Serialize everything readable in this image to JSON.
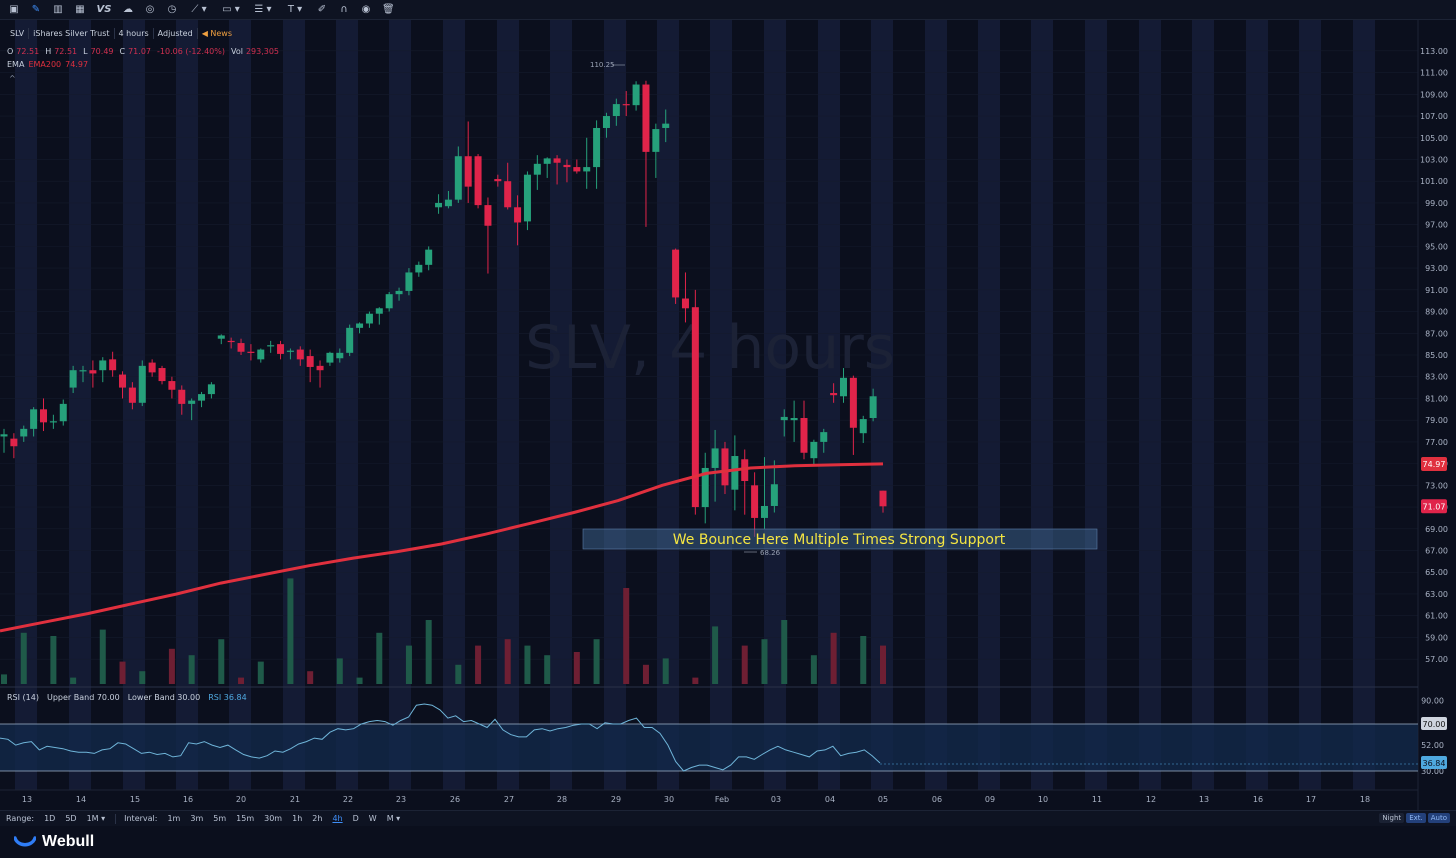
{
  "toolbar": {
    "icons": [
      "chart-icon",
      "pencil-icon",
      "candles-icon",
      "grid-icon",
      "vs-icon",
      "cloud-icon",
      "compare-icon",
      "clock-icon",
      "trendline-icon",
      "rectangle-icon",
      "fib-icon",
      "text-tool-icon",
      "brush-icon",
      "magnet-icon",
      "eye-icon",
      "trash-icon"
    ],
    "vs_label": "VS"
  },
  "header": {
    "symbol": "SLV",
    "name": "iShares Silver Trust",
    "interval": "4 hours",
    "adjust": "Adjusted",
    "news": "News"
  },
  "ohlc": {
    "o_label": "O",
    "o": "72.51",
    "h_label": "H",
    "h": "72.51",
    "l_label": "L",
    "l": "70.49",
    "c_label": "C",
    "c": "71.07",
    "change": "-10.06 (-12.40%)",
    "vol_label": "Vol",
    "vol": "293,305"
  },
  "ema": {
    "label": "EMA",
    "name": "EMA200",
    "value": "74.97"
  },
  "watermark": "SLV, 4 hours",
  "annotation": "We Bounce Here Multiple Times Strong Support",
  "high_marker": "110.25",
  "low_marker": "68.26",
  "price_axis": [
    "113.00",
    "111.00",
    "109.00",
    "107.00",
    "105.00",
    "103.00",
    "101.00",
    "99.00",
    "97.00",
    "95.00",
    "93.00",
    "91.00",
    "89.00",
    "87.00",
    "85.00",
    "83.00",
    "81.00",
    "79.00",
    "77.00",
    "75.00",
    "73.00",
    "71.00",
    "69.00",
    "67.00",
    "65.00",
    "63.00",
    "61.00",
    "59.00",
    "57.00"
  ],
  "price_badges": {
    "ema": "74.97",
    "last": "71.07"
  },
  "rsi": {
    "label": "RSI (14)",
    "upper": "Upper Band 70.00",
    "lower": "Lower Band 30.00",
    "value": "RSI 36.84",
    "axis": [
      "90.00",
      "70.00",
      "52.00",
      "30.00"
    ],
    "badge_upper": "70.00",
    "badge_value": "36.84",
    "badge_lower": "30.00"
  },
  "x_axis": [
    "13",
    "14",
    "15",
    "16",
    "20",
    "21",
    "22",
    "23",
    "26",
    "27",
    "28",
    "29",
    "30",
    "Feb",
    "03",
    "04",
    "05",
    "06",
    "09",
    "10",
    "11",
    "12",
    "13",
    "16",
    "17",
    "18"
  ],
  "bottom_bar": {
    "range_label": "Range:",
    "ranges": [
      "1D",
      "5D",
      "1M ▾"
    ],
    "interval_label": "Interval:",
    "intervals": [
      "1m",
      "3m",
      "5m",
      "15m",
      "30m",
      "1h",
      "2h",
      "4h",
      "D",
      "W",
      "M ▾"
    ],
    "selected_interval": "4h",
    "night": "Night",
    "ext": "Ext.",
    "auto": "Auto"
  },
  "footer": {
    "brand": "Webull"
  },
  "colors": {
    "up": "#26a17b",
    "down": "#e0244a",
    "ema": "#e0303e",
    "rsi": "#6fb5d9",
    "bg": "#0b0f1d",
    "annotation_text": "#f5e642"
  },
  "chart_data": {
    "type": "candlestick",
    "title": "SLV, 4 hours",
    "ylim": [
      56,
      114
    ],
    "candles": [
      {
        "o": 77.5,
        "h": 78.2,
        "l": 76.0,
        "c": 77.7
      },
      {
        "o": 77.3,
        "h": 77.8,
        "l": 75.5,
        "c": 76.6
      },
      {
        "o": 77.5,
        "h": 78.5,
        "l": 77.0,
        "c": 78.2
      },
      {
        "o": 78.2,
        "h": 80.2,
        "l": 77.5,
        "c": 80.0
      },
      {
        "o": 80.0,
        "h": 81.0,
        "l": 78.0,
        "c": 78.8
      },
      {
        "o": 78.8,
        "h": 79.5,
        "l": 78.2,
        "c": 78.9
      },
      {
        "o": 78.9,
        "h": 80.9,
        "l": 78.5,
        "c": 80.5
      },
      {
        "o": 82.0,
        "h": 84.0,
        "l": 81.5,
        "c": 83.6
      },
      {
        "o": 83.5,
        "h": 84.0,
        "l": 82.5,
        "c": 83.6
      },
      {
        "o": 83.6,
        "h": 84.5,
        "l": 82.0,
        "c": 83.3
      },
      {
        "o": 83.6,
        "h": 84.8,
        "l": 82.5,
        "c": 84.5
      },
      {
        "o": 84.6,
        "h": 85.3,
        "l": 83.0,
        "c": 83.6
      },
      {
        "o": 83.2,
        "h": 83.5,
        "l": 81.0,
        "c": 82.0
      },
      {
        "o": 82.0,
        "h": 82.5,
        "l": 80.0,
        "c": 80.6
      },
      {
        "o": 80.6,
        "h": 84.5,
        "l": 80.3,
        "c": 84.0
      },
      {
        "o": 84.3,
        "h": 84.6,
        "l": 83.0,
        "c": 83.4
      },
      {
        "o": 83.8,
        "h": 84.0,
        "l": 82.3,
        "c": 82.6
      },
      {
        "o": 82.6,
        "h": 83.0,
        "l": 81.0,
        "c": 81.8
      },
      {
        "o": 81.8,
        "h": 82.2,
        "l": 79.5,
        "c": 80.5
      },
      {
        "o": 80.5,
        "h": 81.0,
        "l": 79.0,
        "c": 80.8
      },
      {
        "o": 80.8,
        "h": 81.6,
        "l": 80.2,
        "c": 81.4
      },
      {
        "o": 81.4,
        "h": 82.5,
        "l": 81.0,
        "c": 82.3
      },
      {
        "o": 86.5,
        "h": 86.9,
        "l": 86.0,
        "c": 86.8
      },
      {
        "o": 86.3,
        "h": 86.6,
        "l": 85.6,
        "c": 86.2
      },
      {
        "o": 86.1,
        "h": 86.5,
        "l": 85.0,
        "c": 85.3
      },
      {
        "o": 85.3,
        "h": 86.0,
        "l": 84.5,
        "c": 85.2
      },
      {
        "o": 84.6,
        "h": 85.6,
        "l": 84.3,
        "c": 85.5
      },
      {
        "o": 85.8,
        "h": 86.3,
        "l": 85.2,
        "c": 85.9
      },
      {
        "o": 86.0,
        "h": 86.3,
        "l": 84.6,
        "c": 85.1
      },
      {
        "o": 85.3,
        "h": 85.6,
        "l": 84.6,
        "c": 85.4
      },
      {
        "o": 85.5,
        "h": 85.8,
        "l": 84.0,
        "c": 84.6
      },
      {
        "o": 84.9,
        "h": 85.5,
        "l": 82.5,
        "c": 83.9
      },
      {
        "o": 84.0,
        "h": 84.5,
        "l": 82.0,
        "c": 83.6
      },
      {
        "o": 84.3,
        "h": 85.3,
        "l": 84.0,
        "c": 85.2
      },
      {
        "o": 84.7,
        "h": 85.6,
        "l": 84.3,
        "c": 85.2
      },
      {
        "o": 85.2,
        "h": 87.8,
        "l": 84.9,
        "c": 87.5
      },
      {
        "o": 87.5,
        "h": 88.0,
        "l": 87.0,
        "c": 87.9
      },
      {
        "o": 87.9,
        "h": 89.0,
        "l": 87.5,
        "c": 88.8
      },
      {
        "o": 88.8,
        "h": 89.4,
        "l": 87.8,
        "c": 89.3
      },
      {
        "o": 89.3,
        "h": 90.8,
        "l": 89.0,
        "c": 90.6
      },
      {
        "o": 90.6,
        "h": 91.2,
        "l": 90.0,
        "c": 90.9
      },
      {
        "o": 90.9,
        "h": 93.0,
        "l": 90.5,
        "c": 92.6
      },
      {
        "o": 92.6,
        "h": 93.6,
        "l": 92.2,
        "c": 93.3
      },
      {
        "o": 93.3,
        "h": 95.0,
        "l": 92.8,
        "c": 94.7
      },
      {
        "o": 98.6,
        "h": 99.8,
        "l": 98.0,
        "c": 99.0
      },
      {
        "o": 98.7,
        "h": 100.1,
        "l": 98.5,
        "c": 99.3
      },
      {
        "o": 99.3,
        "h": 104.2,
        "l": 99.0,
        "c": 103.3
      },
      {
        "o": 103.3,
        "h": 106.5,
        "l": 99.0,
        "c": 100.5
      },
      {
        "o": 103.3,
        "h": 103.5,
        "l": 98.5,
        "c": 98.8
      },
      {
        "o": 98.8,
        "h": 99.5,
        "l": 92.5,
        "c": 96.9
      },
      {
        "o": 101.2,
        "h": 101.6,
        "l": 100.5,
        "c": 101.0
      },
      {
        "o": 101.0,
        "h": 102.7,
        "l": 98.4,
        "c": 98.6
      },
      {
        "o": 98.6,
        "h": 99.7,
        "l": 95.1,
        "c": 97.2
      },
      {
        "o": 97.3,
        "h": 101.9,
        "l": 96.5,
        "c": 101.6
      },
      {
        "o": 101.6,
        "h": 103.4,
        "l": 100.2,
        "c": 102.6
      },
      {
        "o": 102.6,
        "h": 103.2,
        "l": 101.3,
        "c": 103.1
      },
      {
        "o": 103.1,
        "h": 103.4,
        "l": 100.7,
        "c": 102.7
      },
      {
        "o": 102.5,
        "h": 103.0,
        "l": 100.9,
        "c": 102.3
      },
      {
        "o": 102.3,
        "h": 103.0,
        "l": 101.7,
        "c": 101.9
      },
      {
        "o": 101.9,
        "h": 105.0,
        "l": 100.3,
        "c": 102.3
      },
      {
        "o": 102.3,
        "h": 106.6,
        "l": 100.3,
        "c": 105.9
      },
      {
        "o": 105.9,
        "h": 107.3,
        "l": 105.0,
        "c": 107.0
      },
      {
        "o": 107.0,
        "h": 108.6,
        "l": 106.1,
        "c": 108.1
      },
      {
        "o": 108.1,
        "h": 109.3,
        "l": 107.0,
        "c": 108.0
      },
      {
        "o": 108.0,
        "h": 110.2,
        "l": 107.5,
        "c": 109.9
      },
      {
        "o": 109.9,
        "h": 110.25,
        "l": 96.8,
        "c": 103.7
      },
      {
        "o": 103.7,
        "h": 106.3,
        "l": 101.3,
        "c": 105.8
      },
      {
        "o": 105.9,
        "h": 107.6,
        "l": 104.6,
        "c": 106.3
      },
      {
        "o": 94.7,
        "h": 94.8,
        "l": 89.7,
        "c": 90.3
      },
      {
        "o": 90.2,
        "h": 92.6,
        "l": 88.0,
        "c": 89.3
      },
      {
        "o": 89.4,
        "h": 91.0,
        "l": 70.3,
        "c": 71.0
      },
      {
        "o": 71.0,
        "h": 76.0,
        "l": 69.5,
        "c": 74.6
      },
      {
        "o": 74.6,
        "h": 78.1,
        "l": 71.5,
        "c": 76.4
      },
      {
        "o": 76.4,
        "h": 77.0,
        "l": 72.2,
        "c": 73.0
      },
      {
        "o": 72.6,
        "h": 77.6,
        "l": 70.7,
        "c": 75.7
      },
      {
        "o": 75.4,
        "h": 76.3,
        "l": 70.3,
        "c": 73.4
      },
      {
        "o": 73.0,
        "h": 74.2,
        "l": 68.26,
        "c": 70.0
      },
      {
        "o": 70.0,
        "h": 75.6,
        "l": 69.0,
        "c": 71.1
      },
      {
        "o": 71.1,
        "h": 75.3,
        "l": 70.5,
        "c": 73.1
      },
      {
        "o": 79.0,
        "h": 80.0,
        "l": 77.5,
        "c": 79.3
      },
      {
        "o": 79.0,
        "h": 80.8,
        "l": 77.0,
        "c": 79.2
      },
      {
        "o": 79.2,
        "h": 80.8,
        "l": 75.4,
        "c": 76.0
      },
      {
        "o": 75.5,
        "h": 77.2,
        "l": 74.8,
        "c": 77.0
      },
      {
        "o": 77.0,
        "h": 78.2,
        "l": 76.0,
        "c": 77.9
      },
      {
        "o": 81.5,
        "h": 82.4,
        "l": 80.6,
        "c": 81.3
      },
      {
        "o": 81.2,
        "h": 83.8,
        "l": 80.6,
        "c": 82.9
      },
      {
        "o": 82.9,
        "h": 83.1,
        "l": 75.8,
        "c": 78.3
      },
      {
        "o": 77.8,
        "h": 79.4,
        "l": 76.9,
        "c": 79.1
      },
      {
        "o": 79.2,
        "h": 81.9,
        "l": 78.9,
        "c": 81.2
      },
      {
        "o": 72.51,
        "h": 72.51,
        "l": 70.49,
        "c": 71.07
      }
    ],
    "ema200": [
      59.6,
      60.4,
      61.2,
      62.1,
      63.0,
      64.0,
      64.8,
      65.6,
      66.3,
      66.9,
      67.6,
      68.5,
      69.5,
      70.5,
      71.6,
      73.0,
      74.1,
      74.6,
      74.8,
      74.9,
      74.97
    ],
    "volume": [
      3,
      16,
      15,
      2,
      17,
      7,
      4,
      11,
      9,
      14,
      2,
      7,
      33,
      4,
      8,
      2,
      16,
      12,
      20,
      6,
      12,
      14,
      12,
      9,
      10,
      14,
      30,
      6,
      8,
      2,
      18,
      12,
      14,
      20,
      9,
      16,
      15,
      12
    ],
    "rsi": [
      58,
      57,
      52,
      54,
      55,
      48,
      51,
      50,
      49,
      47,
      46,
      46,
      45,
      48,
      49,
      54,
      53,
      49,
      45,
      46,
      44,
      45,
      42,
      43,
      54,
      53,
      55,
      52,
      50,
      52,
      48,
      44,
      42,
      41,
      43,
      47,
      46,
      49,
      53,
      55,
      58,
      57,
      63,
      66,
      65,
      66,
      70,
      72,
      73,
      72,
      69,
      73,
      76,
      86,
      87,
      86,
      82,
      75,
      77,
      72,
      73,
      70,
      67,
      74,
      65,
      61,
      59,
      59,
      65,
      66,
      64,
      66,
      67,
      69,
      70,
      70,
      66,
      71,
      70,
      70,
      73,
      75,
      67,
      67,
      62,
      52,
      38,
      30,
      33,
      35,
      35,
      33,
      31,
      35,
      42,
      42,
      40,
      44,
      48,
      51,
      48,
      46,
      44,
      42,
      47,
      48,
      51,
      43,
      45,
      46,
      48,
      43,
      36.84
    ]
  }
}
